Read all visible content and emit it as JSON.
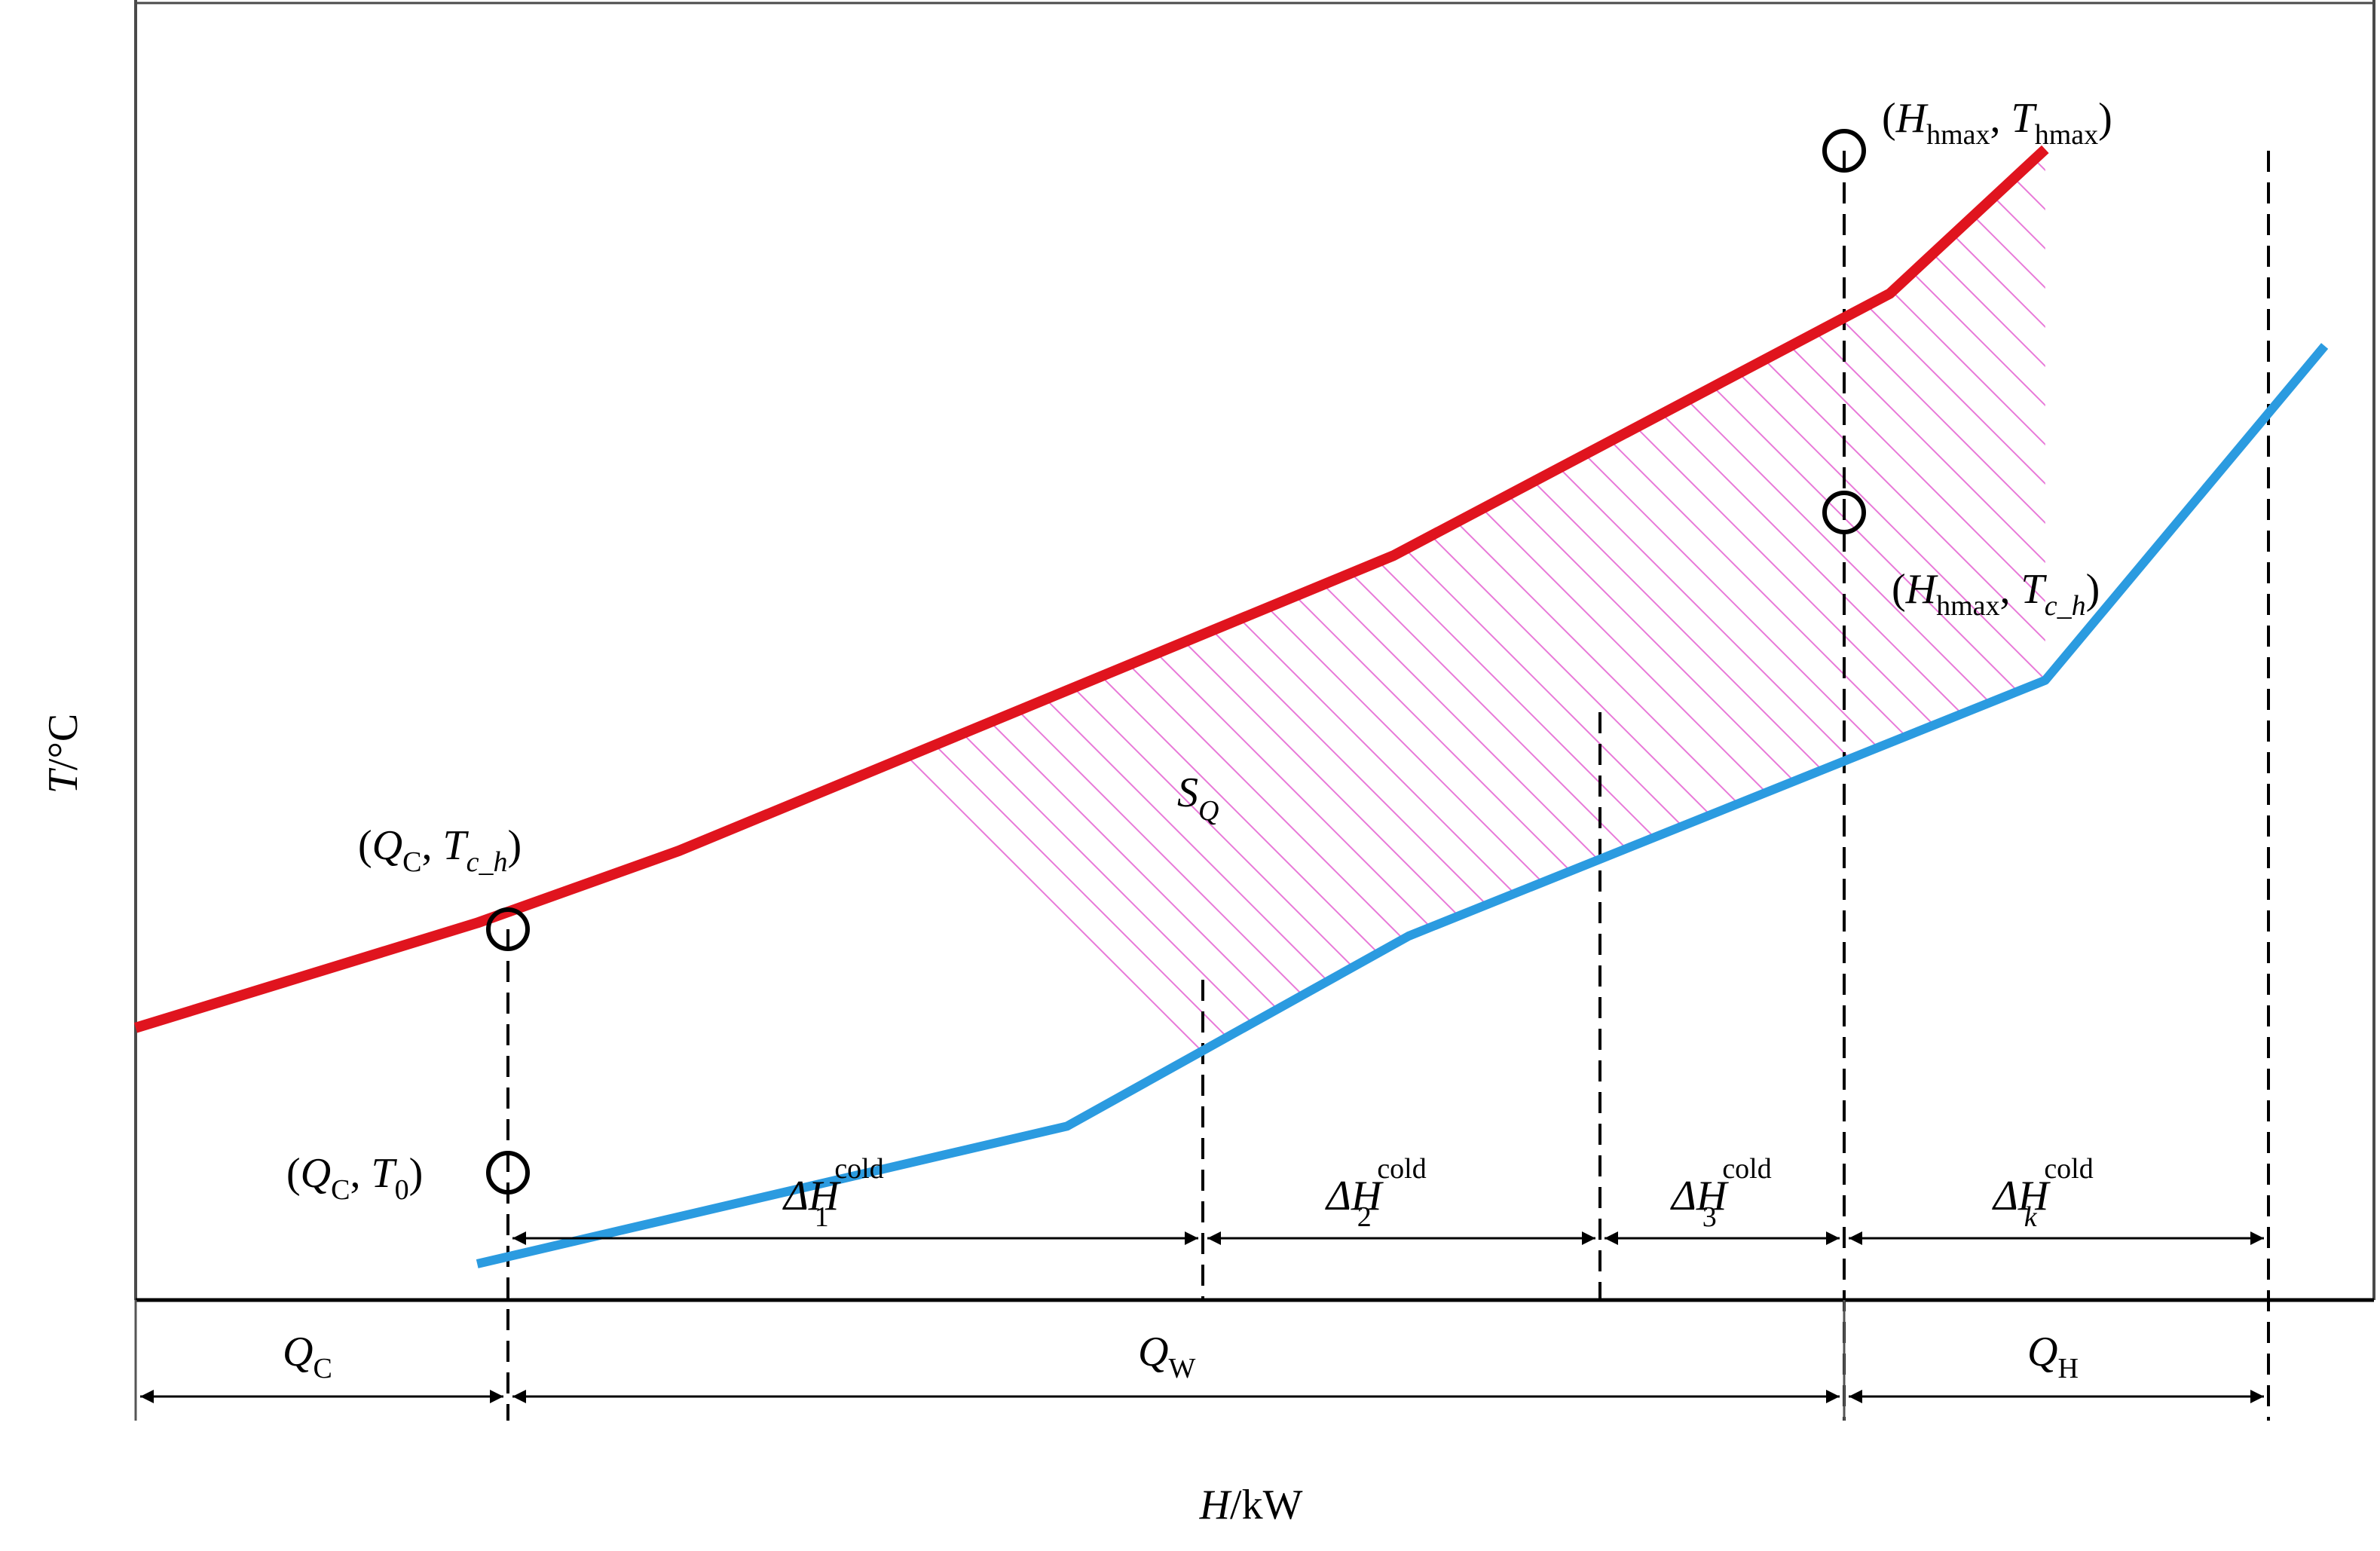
{
  "axes": {
    "y_label": {
      "var": "T",
      "unit": "/°C"
    },
    "x_label": {
      "var": "H",
      "unit": "/kW"
    }
  },
  "curves": {
    "hot_curve": {
      "color": "#e0141e",
      "points": [
        [
          0,
          3.3
        ],
        [
          2.2,
          4.1
        ],
        [
          3.5,
          4.65
        ],
        [
          8.1,
          6.9
        ],
        [
          11.3,
          8.9
        ],
        [
          12.3,
          10.0
        ]
      ]
    },
    "cold_curve": {
      "color": "#2b9be0",
      "points": [
        [
          2.2,
          1.5
        ],
        [
          6.0,
          2.55
        ],
        [
          8.2,
          4.0
        ],
        [
          12.3,
          5.95
        ],
        [
          14.1,
          8.5
        ]
      ]
    }
  },
  "area_label": {
    "main": "S",
    "sub": "Q"
  },
  "points": {
    "qc_tch": {
      "open": "(",
      "v1": "Q",
      "v1_sub": "C",
      "sep": ", ",
      "v2": "T",
      "v2_sub": "c_h",
      "close": ")"
    },
    "qc_t0": {
      "open": "(",
      "v1": "Q",
      "v1_sub": "C",
      "sep": ", ",
      "v2": "T",
      "v2_sub": "0",
      "close": ")"
    },
    "hmax_thmax": {
      "open": "(",
      "v1": "H",
      "v1_sub": "hmax",
      "sep": ", ",
      "v2": "T",
      "v2_sub": "hmax",
      "close": ")"
    },
    "hmax_tch": {
      "open": "(",
      "v1": "H",
      "v1_sub": "hmax",
      "sep": ", ",
      "v2": "T",
      "v2_sub": "c_h",
      "close": ")"
    }
  },
  "intervals_upper": [
    {
      "prefix": "ΔH",
      "sub": "1",
      "sup": "cold"
    },
    {
      "prefix": "ΔH",
      "sub": "2",
      "sup": "cold"
    },
    {
      "prefix": "ΔH",
      "sub": "3",
      "sup": "cold"
    },
    {
      "prefix": "ΔH",
      "sub": "k",
      "sup": "cold"
    }
  ],
  "intervals_lower": [
    {
      "main": "Q",
      "sub": "C"
    },
    {
      "main": "Q",
      "sub": "W"
    },
    {
      "main": "Q",
      "sub": "H"
    }
  ]
}
